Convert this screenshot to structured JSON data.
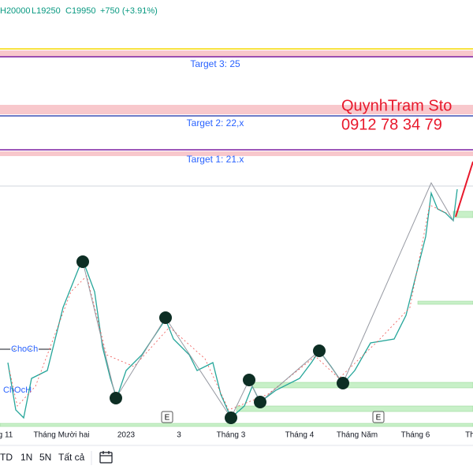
{
  "header": {
    "high": "H20000",
    "low": "L19250",
    "close": "C19950",
    "change": "+750 (+3.91%)"
  },
  "targets": [
    "Target 3: 25",
    "Target 2: 22,x",
    "Target 1: 21.x"
  ],
  "watermark": {
    "name": "QuynhTram Sto",
    "phone": "0912 78 34 79"
  },
  "annotations": [
    "ChoCh",
    "ChOcH",
    "E",
    "E"
  ],
  "x_axis_labels": [
    "g 11",
    "Tháng Mười hai",
    "2023",
    "3",
    "Tháng 3",
    "Tháng 4",
    "Tháng Năm",
    "Tháng 6",
    "Th"
  ],
  "toolbar": {
    "ranges": [
      "TD",
      "1N",
      "5N",
      "Tất cả"
    ]
  }
}
